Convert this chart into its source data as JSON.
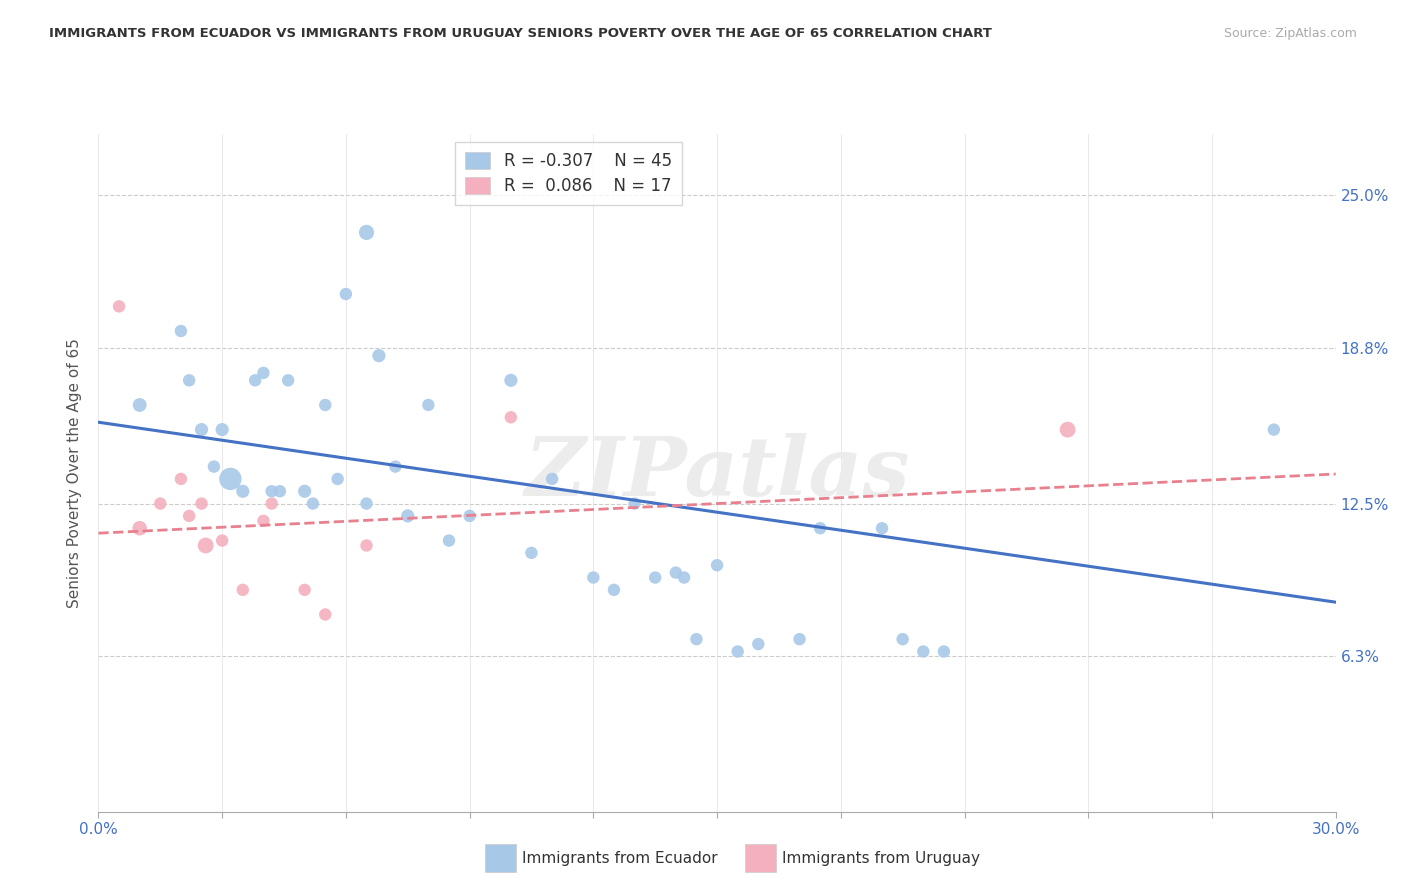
{
  "title": "IMMIGRANTS FROM ECUADOR VS IMMIGRANTS FROM URUGUAY SENIORS POVERTY OVER THE AGE OF 65 CORRELATION CHART",
  "source": "Source: ZipAtlas.com",
  "ylabel": "Seniors Poverty Over the Age of 65",
  "xlim": [
    0.0,
    0.3
  ],
  "ylim": [
    0.0,
    0.275
  ],
  "yticks": [
    0.063,
    0.125,
    0.188,
    0.25
  ],
  "ytick_labels": [
    "6.3%",
    "12.5%",
    "18.8%",
    "25.0%"
  ],
  "xticks": [
    0.0,
    0.03,
    0.06,
    0.09,
    0.12,
    0.15,
    0.18,
    0.21,
    0.24,
    0.27,
    0.3
  ],
  "xtick_labels_show": [
    "0.0%",
    "",
    "",
    "",
    "",
    "",
    "",
    "",
    "",
    "",
    "30.0%"
  ],
  "ecuador_R": "-0.307",
  "ecuador_N": "45",
  "uruguay_R": "0.086",
  "uruguay_N": "17",
  "ecuador_color": "#a8c8e8",
  "uruguay_color": "#f4b0be",
  "ecuador_line_color": "#4472c4",
  "uruguay_line_color": "#e8808e",
  "watermark": "ZIPatlas",
  "ecuador_scatter_x": [
    0.01,
    0.02,
    0.022,
    0.025,
    0.028,
    0.03,
    0.032,
    0.035,
    0.038,
    0.04,
    0.042,
    0.044,
    0.046,
    0.05,
    0.052,
    0.055,
    0.058,
    0.06,
    0.065,
    0.068,
    0.072,
    0.075,
    0.08,
    0.085,
    0.09,
    0.1,
    0.105,
    0.11,
    0.12,
    0.125,
    0.13,
    0.135,
    0.14,
    0.142,
    0.145,
    0.15,
    0.155,
    0.16,
    0.17,
    0.175,
    0.19,
    0.195,
    0.2,
    0.205,
    0.285
  ],
  "ecuador_scatter_y": [
    0.165,
    0.195,
    0.175,
    0.155,
    0.14,
    0.155,
    0.135,
    0.13,
    0.175,
    0.178,
    0.13,
    0.13,
    0.175,
    0.13,
    0.125,
    0.165,
    0.135,
    0.21,
    0.125,
    0.185,
    0.14,
    0.12,
    0.165,
    0.11,
    0.12,
    0.175,
    0.105,
    0.135,
    0.095,
    0.09,
    0.125,
    0.095,
    0.097,
    0.095,
    0.07,
    0.1,
    0.065,
    0.068,
    0.07,
    0.115,
    0.115,
    0.07,
    0.065,
    0.065,
    0.155
  ],
  "ecuador_scatter_size": [
    100,
    80,
    80,
    90,
    80,
    90,
    260,
    90,
    80,
    80,
    80,
    80,
    80,
    90,
    80,
    80,
    80,
    80,
    80,
    90,
    80,
    90,
    80,
    80,
    80,
    90,
    80,
    80,
    80,
    80,
    80,
    80,
    80,
    80,
    80,
    80,
    80,
    80,
    80,
    80,
    80,
    80,
    80,
    80,
    80
  ],
  "ecuador_high_point_x": [
    0.065
  ],
  "ecuador_high_point_y": [
    0.235
  ],
  "ecuador_high_point_size": [
    120
  ],
  "ecuador_trendline_x": [
    0.0,
    0.3
  ],
  "ecuador_trendline_y": [
    0.158,
    0.085
  ],
  "uruguay_scatter_x": [
    0.005,
    0.01,
    0.015,
    0.02,
    0.022,
    0.025,
    0.026,
    0.03,
    0.035,
    0.04,
    0.042,
    0.05,
    0.055,
    0.065,
    0.1,
    0.235
  ],
  "uruguay_scatter_y": [
    0.205,
    0.115,
    0.125,
    0.135,
    0.12,
    0.125,
    0.108,
    0.11,
    0.09,
    0.118,
    0.125,
    0.09,
    0.08,
    0.108,
    0.16,
    0.155
  ],
  "uruguay_scatter_size": [
    80,
    110,
    80,
    80,
    80,
    80,
    130,
    80,
    80,
    80,
    80,
    80,
    80,
    80,
    80,
    130
  ],
  "uruguay_trendline_x": [
    0.0,
    0.3
  ],
  "uruguay_trendline_y": [
    0.113,
    0.137
  ]
}
